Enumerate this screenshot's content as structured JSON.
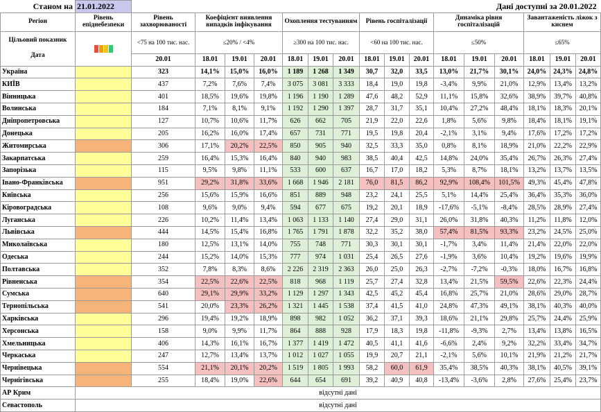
{
  "header": {
    "as_of_label": "Станом на",
    "as_of_date": "21.01.2022",
    "data_available": "Дані доступні за  20.01.2022"
  },
  "columns": {
    "region": "Регіон",
    "danger": "Рівень епіднебезпеки",
    "incidence": "Рівень захворюваності",
    "detection": "Коефіцієнт виявлення випадків інфікування",
    "testing": "Охоплення тестуванням",
    "hosp": "Рівень госпіталізації",
    "hosp_dyn": "Динаміка рівня госпіталізацій",
    "oxygen": "Завантаженість ліжок з киснем"
  },
  "targets": {
    "label": "Цільовий показник",
    "incidence": "<75 на 100 тис. нас.",
    "detection": "≤20% / <4%",
    "testing": "≥300 на 100 тис. нас.",
    "hosp": "<60 на 100 тис. нас.",
    "hosp_dyn": "≤50%",
    "oxygen": "≤65%"
  },
  "indicator_colors": [
    "#e74c3c",
    "#f39c12",
    "#f1c40f",
    "#2ecc71"
  ],
  "date_label": "Дата",
  "dates": {
    "incidence": "20.01",
    "three": [
      "18.01",
      "19.01",
      "20.01"
    ]
  },
  "missing_text": "відсутні дані",
  "rows": [
    {
      "name": "Україна",
      "danger": "yellow",
      "inc": "323",
      "det": [
        "14,1%",
        "15,0%",
        "16,0%"
      ],
      "test": [
        "1 189",
        "1 268",
        "1 349"
      ],
      "hosp": [
        "30,7",
        "32,0",
        "33,5"
      ],
      "dyn": [
        "13,0%",
        "21,7%",
        "30,1%"
      ],
      "oxy": [
        "24,0%",
        "24,3%",
        "24,8%"
      ]
    },
    {
      "name": "КИЇВ",
      "danger": "yellow",
      "inc": "437",
      "det": [
        "7,2%",
        "7,6%",
        "7,4%"
      ],
      "test": [
        "3 075",
        "3 081",
        "3 333"
      ],
      "hosp": [
        "18,4",
        "19,0",
        "19,8"
      ],
      "dyn": [
        "-3,4%",
        "9,9%",
        "21,0%"
      ],
      "oxy": [
        "12,9%",
        "13,4%",
        "13,2%"
      ]
    },
    {
      "name": "Вінницька",
      "danger": "yellow",
      "inc": "401",
      "det": [
        "18,5%",
        "19,6%",
        "19,8%"
      ],
      "test": [
        "1 196",
        "1 190",
        "1 289"
      ],
      "hosp": [
        "47,6",
        "48,2",
        "52,9"
      ],
      "dyn": [
        "11,1%",
        "15,8%",
        "32,6%"
      ],
      "oxy": [
        "38,9%",
        "39,7%",
        "40,8%"
      ]
    },
    {
      "name": "Волинська",
      "danger": "yellow",
      "inc": "184",
      "det": [
        "7,1%",
        "8,1%",
        "9,1%"
      ],
      "test": [
        "1 192",
        "1 290",
        "1 397"
      ],
      "hosp": [
        "28,7",
        "31,7",
        "35,1"
      ],
      "dyn": [
        "10,4%",
        "27,2%",
        "48,4%"
      ],
      "oxy": [
        "18,1%",
        "18,3%",
        "20,1%"
      ]
    },
    {
      "name": "Дніпропетровська",
      "danger": "yellow",
      "inc": "127",
      "det": [
        "10,7%",
        "10,6%",
        "11,7%"
      ],
      "test": [
        "626",
        "662",
        "705"
      ],
      "hosp": [
        "21,9",
        "22,0",
        "22,6"
      ],
      "dyn": [
        "1,8%",
        "5,6%",
        "9,8%"
      ],
      "oxy": [
        "18,4%",
        "18,1%",
        "19,1%"
      ]
    },
    {
      "name": "Донецька",
      "danger": "yellow",
      "inc": "205",
      "det": [
        "16,2%",
        "16,0%",
        "17,4%"
      ],
      "test": [
        "657",
        "731",
        "771"
      ],
      "hosp": [
        "19,5",
        "19,8",
        "20,4"
      ],
      "dyn": [
        "-2,1%",
        "3,1%",
        "9,4%"
      ],
      "oxy": [
        "17,6%",
        "17,2%",
        "17,2%"
      ]
    },
    {
      "name": "Житомирська",
      "danger": "orange",
      "inc": "306",
      "det": [
        "17,1%",
        "20,2%",
        "22,5%"
      ],
      "test": [
        "850",
        "905",
        "940"
      ],
      "hosp": [
        "32,5",
        "33,3",
        "35,0"
      ],
      "dyn": [
        "0,8%",
        "8,1%",
        "18,9%"
      ],
      "oxy": [
        "21,0%",
        "22,2%",
        "22,9%"
      ]
    },
    {
      "name": "Закарпатська",
      "danger": "yellow",
      "inc": "259",
      "det": [
        "16,4%",
        "15,3%",
        "16,4%"
      ],
      "test": [
        "840",
        "940",
        "983"
      ],
      "hosp": [
        "38,5",
        "40,4",
        "42,5"
      ],
      "dyn": [
        "14,8%",
        "24,0%",
        "35,4%"
      ],
      "oxy": [
        "26,7%",
        "26,3%",
        "27,4%"
      ]
    },
    {
      "name": "Запорізька",
      "danger": "yellow",
      "inc": "115",
      "det": [
        "9,5%",
        "9,8%",
        "11,1%"
      ],
      "test": [
        "533",
        "600",
        "637"
      ],
      "hosp": [
        "16,7",
        "17,0",
        "18,2"
      ],
      "dyn": [
        "5,3%",
        "8,7%",
        "18,1%"
      ],
      "oxy": [
        "13,2%",
        "13,7%",
        "13,5%"
      ]
    },
    {
      "name": "Івано-Франківська",
      "danger": "orange",
      "inc": "951",
      "det": [
        "29,2%",
        "31,8%",
        "33,6%"
      ],
      "test": [
        "1 668",
        "1 946",
        "2 181"
      ],
      "hosp": [
        "76,0",
        "81,5",
        "86,2"
      ],
      "dyn": [
        "92,9%",
        "108,4%",
        "101,5%"
      ],
      "oxy": [
        "49,3%",
        "45,4%",
        "47,8%"
      ]
    },
    {
      "name": "Київська",
      "danger": "yellow",
      "inc": "256",
      "det": [
        "15,6%",
        "15,9%",
        "16,6%"
      ],
      "test": [
        "851",
        "889",
        "948"
      ],
      "hosp": [
        "23,2",
        "24,1",
        "25,5"
      ],
      "dyn": [
        "5,1%",
        "14,4%",
        "25,4%"
      ],
      "oxy": [
        "36,4%",
        "35,3%",
        "36,0%"
      ]
    },
    {
      "name": "Кіровоградська",
      "danger": "yellow",
      "inc": "108",
      "det": [
        "9,6%",
        "9,0%",
        "9,4%"
      ],
      "test": [
        "594",
        "677",
        "675"
      ],
      "hosp": [
        "19,2",
        "20,1",
        "18,9"
      ],
      "dyn": [
        "-17,6%",
        "-5,1%",
        "-8,4%"
      ],
      "oxy": [
        "28,5%",
        "28,9%",
        "27,4%"
      ]
    },
    {
      "name": "Луганська",
      "danger": "yellow",
      "inc": "226",
      "det": [
        "10,2%",
        "11,4%",
        "13,4%"
      ],
      "test": [
        "1 063",
        "1 133",
        "1 140"
      ],
      "hosp": [
        "27,4",
        "29,0",
        "31,1"
      ],
      "dyn": [
        "26,0%",
        "31,8%",
        "40,3%"
      ],
      "oxy": [
        "11,2%",
        "11,8%",
        "12,0%"
      ]
    },
    {
      "name": "Львівська",
      "danger": "orange",
      "inc": "444",
      "det": [
        "14,5%",
        "15,4%",
        "16,8%"
      ],
      "test": [
        "1 765",
        "1 791",
        "1 878"
      ],
      "hosp": [
        "32,2",
        "35,2",
        "38,0"
      ],
      "dyn": [
        "57,4%",
        "81,5%",
        "93,3%"
      ],
      "oxy": [
        "23,2%",
        "24,5%",
        "25,0%"
      ]
    },
    {
      "name": "Миколаївська",
      "danger": "yellow",
      "inc": "180",
      "det": [
        "12,5%",
        "13,1%",
        "14,0%"
      ],
      "test": [
        "755",
        "748",
        "771"
      ],
      "hosp": [
        "30,3",
        "30,1",
        "30,1"
      ],
      "dyn": [
        "-1,7%",
        "3,4%",
        "11,4%"
      ],
      "oxy": [
        "21,4%",
        "22,0%",
        "22,0%"
      ]
    },
    {
      "name": "Одеська",
      "danger": "yellow",
      "inc": "244",
      "det": [
        "15,2%",
        "14,0%",
        "15,3%"
      ],
      "test": [
        "777",
        "974",
        "1 031"
      ],
      "hosp": [
        "25,4",
        "26,5",
        "27,6"
      ],
      "dyn": [
        "-1,9%",
        "3,6%",
        "10,4%"
      ],
      "oxy": [
        "19,2%",
        "19,6%",
        "19,9%"
      ]
    },
    {
      "name": "Полтавська",
      "danger": "yellow",
      "inc": "352",
      "det": [
        "7,8%",
        "8,3%",
        "8,6%"
      ],
      "test": [
        "2 226",
        "2 319",
        "2 363"
      ],
      "hosp": [
        "26,0",
        "25,0",
        "26,3"
      ],
      "dyn": [
        "-2,7%",
        "-7,2%",
        "-0,3%"
      ],
      "oxy": [
        "18,0%",
        "16,7%",
        "16,8%"
      ]
    },
    {
      "name": "Рівненська",
      "danger": "orange",
      "inc": "354",
      "det": [
        "22,5%",
        "22,6%",
        "22,5%"
      ],
      "test": [
        "818",
        "968",
        "1 119"
      ],
      "hosp": [
        "25,7",
        "27,4",
        "32,8"
      ],
      "dyn": [
        "13,4%",
        "21,5%",
        "59,5%"
      ],
      "oxy": [
        "22,6%",
        "22,3%",
        "24,4%"
      ]
    },
    {
      "name": "Сумська",
      "danger": "orange",
      "inc": "640",
      "det": [
        "29,1%",
        "29,9%",
        "33,2%"
      ],
      "test": [
        "1 129",
        "1 297",
        "1 343"
      ],
      "hosp": [
        "42,5",
        "45,2",
        "45,4"
      ],
      "dyn": [
        "16,8%",
        "25,7%",
        "21,0%"
      ],
      "oxy": [
        "28,6%",
        "29,0%",
        "28,7%"
      ]
    },
    {
      "name": "Тернопільська",
      "danger": "orange",
      "inc": "541",
      "det": [
        "20,0%",
        "23,3%",
        "26,2%"
      ],
      "test": [
        "1 321",
        "1 445",
        "1 538"
      ],
      "hosp": [
        "37,4",
        "41,5",
        "41,0"
      ],
      "dyn": [
        "24,8%",
        "47,3%",
        "49,1%"
      ],
      "oxy": [
        "38,1%",
        "40,3%",
        "40,0%"
      ]
    },
    {
      "name": "Харківська",
      "danger": "yellow",
      "inc": "296",
      "det": [
        "19,4%",
        "19,2%",
        "18,9%"
      ],
      "test": [
        "898",
        "982",
        "1 052"
      ],
      "hosp": [
        "36,2",
        "37,1",
        "39,3"
      ],
      "dyn": [
        "18,6%",
        "21,1%",
        "29,8%"
      ],
      "oxy": [
        "25,7%",
        "24,4%",
        "25,9%"
      ]
    },
    {
      "name": "Херсонська",
      "danger": "yellow",
      "inc": "158",
      "det": [
        "9,0%",
        "9,9%",
        "11,7%"
      ],
      "test": [
        "864",
        "888",
        "928"
      ],
      "hosp": [
        "17,9",
        "18,3",
        "19,8"
      ],
      "dyn": [
        "-11,8%",
        "-9,3%",
        "2,7%"
      ],
      "oxy": [
        "13,4%",
        "13,8%",
        "16,5%"
      ]
    },
    {
      "name": "Хмельницька",
      "danger": "yellow",
      "inc": "406",
      "det": [
        "14,3%",
        "16,1%",
        "16,7%"
      ],
      "test": [
        "1 377",
        "1 419",
        "1 472"
      ],
      "hosp": [
        "40,5",
        "41,1",
        "41,6"
      ],
      "dyn": [
        "-6,6%",
        "2,4%",
        "9,2%"
      ],
      "oxy": [
        "32,2%",
        "33,4%",
        "34,7%"
      ]
    },
    {
      "name": "Черкаська",
      "danger": "yellow",
      "inc": "247",
      "det": [
        "12,7%",
        "13,4%",
        "13,7%"
      ],
      "test": [
        "1 012",
        "1 027",
        "1 055"
      ],
      "hosp": [
        "19,9",
        "20,7",
        "21,1"
      ],
      "dyn": [
        "-2,1%",
        "5,6%",
        "10,1%"
      ],
      "oxy": [
        "21,9%",
        "21,2%",
        "21,7%"
      ]
    },
    {
      "name": "Чернівецька",
      "danger": "orange",
      "inc": "554",
      "det": [
        "21,1%",
        "20,1%",
        "20,2%"
      ],
      "test": [
        "1 519",
        "1 805",
        "1 993"
      ],
      "hosp": [
        "58,2",
        "60,0",
        "61,9"
      ],
      "dyn": [
        "35,4%",
        "38,5%",
        "40,3%"
      ],
      "oxy": [
        "38,1%",
        "40,5%",
        "39,1%"
      ]
    },
    {
      "name": "Чернігівська",
      "danger": "orange",
      "inc": "255",
      "det": [
        "18,4%",
        "19,0%",
        "22,6%"
      ],
      "test": [
        "644",
        "654",
        "691"
      ],
      "hosp": [
        "39,2",
        "40,9",
        "40,8"
      ],
      "dyn": [
        "-13,4%",
        "-3,6%",
        "2,8%"
      ],
      "oxy": [
        "27,6%",
        "25,4%",
        "23,7%"
      ]
    }
  ],
  "missing_rows": [
    "АР Крим",
    "Севастополь"
  ],
  "highlights": {
    "det": {
      "Житомирська": [
        1,
        2
      ],
      "Івано-Франківська": [
        0,
        1,
        2
      ],
      "Рівненська": [
        0,
        1,
        2
      ],
      "Сумська": [
        0,
        1,
        2
      ],
      "Тернопільська": [
        1,
        2
      ],
      "Чернівецька": [
        0,
        1,
        2
      ],
      "Чернігівська": [
        2
      ]
    },
    "hosp": {
      "Івано-Франківська": [
        0,
        1,
        2
      ],
      "Чернівецька": [
        1,
        2
      ]
    },
    "dyn": {
      "Івано-Франківська": [
        0,
        1,
        2
      ],
      "Львівська": [
        0,
        1,
        2
      ],
      "Рівненська": [
        2
      ]
    }
  }
}
